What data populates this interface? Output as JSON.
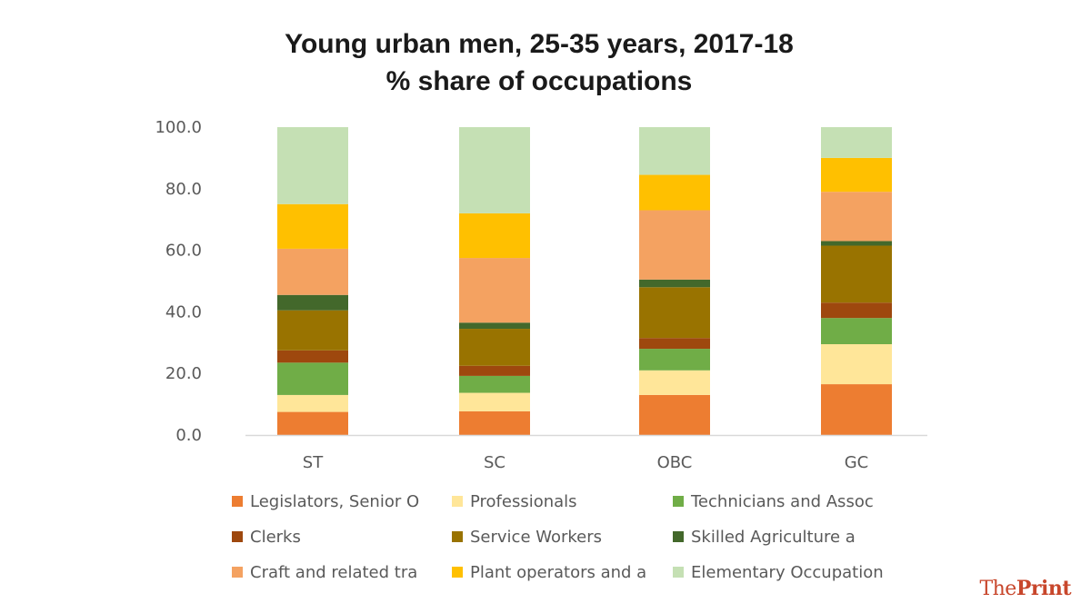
{
  "chart_data": {
    "type": "bar",
    "stacked": true,
    "title": "Young urban men, 25-35 years, 2017-18",
    "subtitle": "% share of occupations",
    "categories": [
      "ST",
      "SC",
      "OBC",
      "GC"
    ],
    "ylim": [
      0,
      100
    ],
    "yticks": [
      "0.0",
      "20.0",
      "40.0",
      "60.0",
      "80.0",
      "100.0"
    ],
    "ytick_values": [
      0,
      20,
      40,
      60,
      80,
      100
    ],
    "series": [
      {
        "name": "Legislators, Senior O",
        "color": "#ED7D31",
        "values": [
          7.5,
          7.7,
          13.0,
          16.5
        ]
      },
      {
        "name": "Professionals",
        "color": "#FFE699",
        "values": [
          5.5,
          6.0,
          8.0,
          13.0
        ]
      },
      {
        "name": "Technicians and Assoc",
        "color": "#70AD47",
        "values": [
          10.5,
          5.5,
          7.0,
          8.5
        ]
      },
      {
        "name": "Clerks",
        "color": "#9E480E",
        "values": [
          4.0,
          3.3,
          3.5,
          5.0
        ]
      },
      {
        "name": "Service Workers",
        "color": "#997300",
        "values": [
          13.0,
          12.0,
          16.5,
          18.5
        ]
      },
      {
        "name": "Skilled Agriculture a",
        "color": "#43682B",
        "values": [
          5.0,
          2.0,
          2.5,
          1.5
        ]
      },
      {
        "name": "Craft and related tra",
        "color": "#F4A261",
        "values": [
          15.0,
          21.0,
          22.5,
          16.0
        ]
      },
      {
        "name": "Plant operators and a",
        "color": "#FFC000",
        "values": [
          14.5,
          14.5,
          11.5,
          11.0
        ]
      },
      {
        "name": "Elementary Occupation",
        "color": "#C5E0B4",
        "values": [
          25.0,
          28.0,
          15.5,
          10.0
        ]
      }
    ],
    "legend_position": "bottom",
    "grid": false
  },
  "branding": {
    "part1": "The",
    "part2": "Print"
  }
}
